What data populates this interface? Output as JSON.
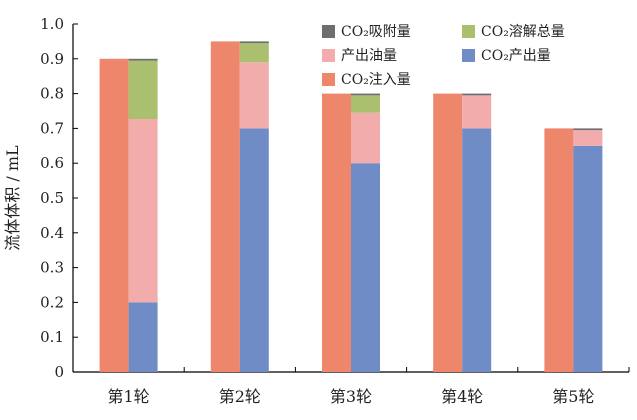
{
  "chart_data": {
    "type": "bar",
    "ylabel": "流体体积 / mL",
    "ylim": [
      0,
      1.0
    ],
    "yticks": [
      "0",
      "0.1",
      "0.2",
      "0.3",
      "0.4",
      "0.5",
      "0.6",
      "0.7",
      "0.8",
      "0.9",
      "1.0"
    ],
    "categories": [
      "第1轮",
      "第2轮",
      "第3轮",
      "第4轮",
      "第5轮"
    ],
    "injection": {
      "name": "CO₂注入量",
      "color": "#ED866A",
      "values": [
        0.9,
        0.95,
        0.8,
        0.8,
        0.7
      ]
    },
    "stack": [
      {
        "name": "CO₂产出量",
        "color": "#6F8CC7",
        "values": [
          0.2,
          0.7,
          0.6,
          0.7,
          0.65
        ]
      },
      {
        "name": "产出油量",
        "color": "#F2ACAC",
        "values": [
          0.527,
          0.19,
          0.145,
          0.095,
          0.045
        ]
      },
      {
        "name": "CO₂溶解总量",
        "color": "#AAC06E",
        "values": [
          0.168,
          0.055,
          0.05,
          0.0,
          0.0
        ]
      },
      {
        "name": "CO₂吸附量",
        "color": "#6E6E6E",
        "values": [
          0.005,
          0.005,
          0.005,
          0.005,
          0.005
        ]
      }
    ],
    "legend": {
      "position": "top-right",
      "order": [
        "CO₂吸附量",
        "CO₂溶解总量",
        "产出油量",
        "CO₂产出量",
        "CO₂注入量"
      ]
    },
    "grid": false
  }
}
